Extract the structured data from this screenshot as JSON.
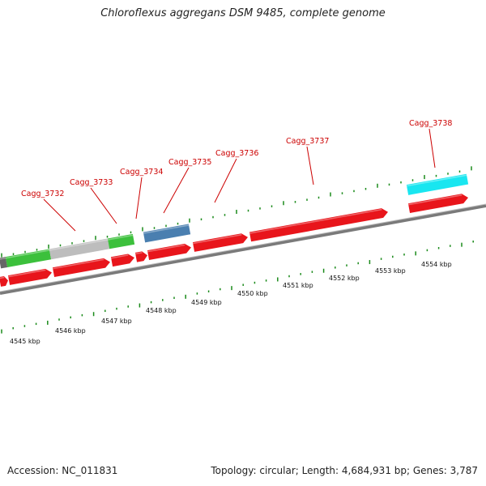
{
  "title": "Chloroflexus aggregans DSM 9485, complete genome",
  "footer": {
    "accession": "Accession: NC_011831",
    "summary": "Topology: circular; Length: 4,684,931 bp; Genes: 3,787"
  },
  "colors": {
    "cds": "#e8151b",
    "rna_green": "#3cc03c",
    "pseudo_gray": "#bdbdbd",
    "blue_feature": "#4a7fb0",
    "cyan_feature": "#19e6f0",
    "backbone": "#7a7a7a",
    "tick": "#1a8a1a",
    "label": "#cc0000"
  },
  "gene_labels": [
    "Cagg_3732",
    "Cagg_3733",
    "Cagg_3734",
    "Cagg_3735",
    "Cagg_3736",
    "Cagg_3737",
    "Cagg_3738"
  ],
  "kbp_labels": [
    "4545 kbp",
    "4546 kbp",
    "4547 kbp",
    "4548 kbp",
    "4549 kbp",
    "4550 kbp",
    "4551 kbp",
    "4552 kbp",
    "4553 kbp",
    "4554 kbp"
  ]
}
